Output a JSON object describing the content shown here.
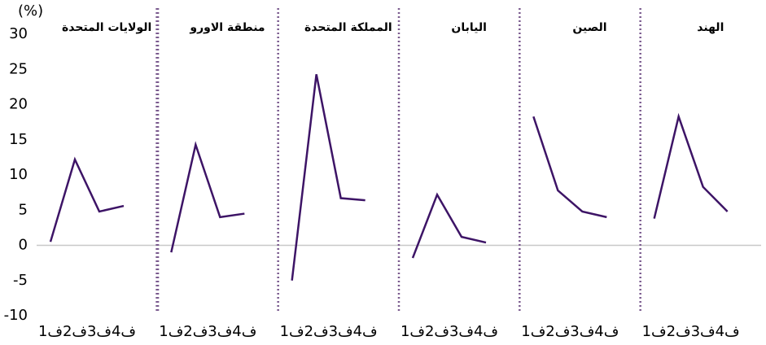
{
  "chart_data": {
    "type": "line",
    "y_label": "(%)",
    "categories": [
      "ف1",
      "ف2",
      "ف3",
      "ف4"
    ],
    "series": [
      {
        "name": "الولايات المتحدة",
        "color": "#3d1466",
        "values": [
          0.5,
          12.2,
          4.8,
          5.6
        ]
      },
      {
        "name": "منطقة الاورو",
        "color": "#3d1466",
        "values": [
          -1,
          14.3,
          4,
          4.5
        ]
      },
      {
        "name": "المملكة المتحدة",
        "color": "#3d1466",
        "values": [
          -5,
          24.3,
          6.7,
          6.4
        ]
      },
      {
        "name": "اليابان",
        "color": "#3d1466",
        "values": [
          -1.8,
          7.2,
          1.2,
          0.4
        ]
      },
      {
        "name": "الصين",
        "color": "#3d1466",
        "values": [
          18.3,
          7.8,
          4.8,
          4
        ]
      },
      {
        "name": "الهند",
        "color": "#3d1466",
        "values": [
          3.8,
          18.3,
          8.3,
          4.8
        ]
      }
    ],
    "ylim": [
      -10,
      30
    ],
    "yticks": [
      -10,
      -5,
      0,
      5,
      10,
      15,
      20,
      25,
      30
    ]
  }
}
